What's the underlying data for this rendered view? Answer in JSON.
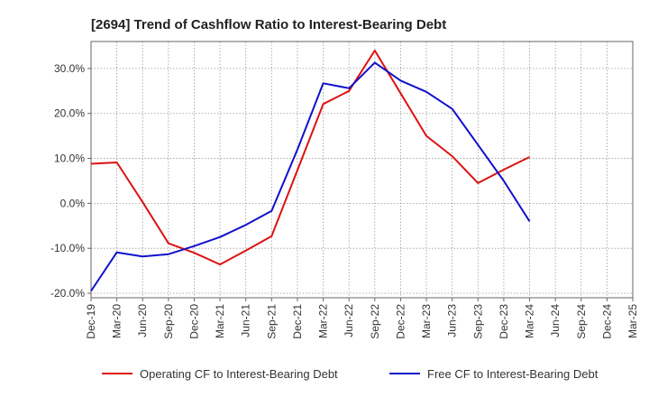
{
  "chart_data": {
    "type": "line",
    "title": "[2694]  Trend of Cashflow Ratio to Interest-Bearing Debt",
    "xlabel": "",
    "ylabel": "",
    "categories": [
      "Dec-19",
      "Mar-20",
      "Jun-20",
      "Sep-20",
      "Dec-20",
      "Mar-21",
      "Jun-21",
      "Sep-21",
      "Dec-21",
      "Mar-22",
      "Jun-22",
      "Sep-22",
      "Dec-22",
      "Mar-23",
      "Jun-23",
      "Sep-23",
      "Dec-23",
      "Mar-24",
      "Jun-24",
      "Sep-24",
      "Dec-24",
      "Mar-25"
    ],
    "y_tick_labels": [
      "-20.0%",
      "-10.0%",
      "0.0%",
      "10.0%",
      "20.0%",
      "30.0%"
    ],
    "y_ticks": [
      -20,
      -10,
      0,
      10,
      20,
      30
    ],
    "ylim": [
      -21,
      36
    ],
    "grid": true,
    "legend_position": "bottom",
    "series": [
      {
        "name": "Operating CF to Interest-Bearing Debt",
        "color": "#dd1111",
        "values": [
          8.8,
          9.1,
          0.3,
          -8.9,
          -11.0,
          -13.6,
          -10.5,
          -7.3,
          7.4,
          22.1,
          25.0,
          34.0,
          24.5,
          15.0,
          10.5,
          4.5,
          7.5,
          10.3,
          null,
          null,
          null,
          null
        ]
      },
      {
        "name": "Free CF to Interest-Bearing Debt",
        "color": "#1111cc",
        "values": [
          -19.5,
          -10.9,
          -11.8,
          -11.3,
          -9.5,
          -7.5,
          -4.8,
          -1.7,
          12.0,
          26.7,
          25.6,
          31.3,
          27.3,
          24.8,
          21.0,
          13.0,
          5.0,
          -4.0,
          null,
          null,
          null,
          null
        ]
      }
    ]
  }
}
